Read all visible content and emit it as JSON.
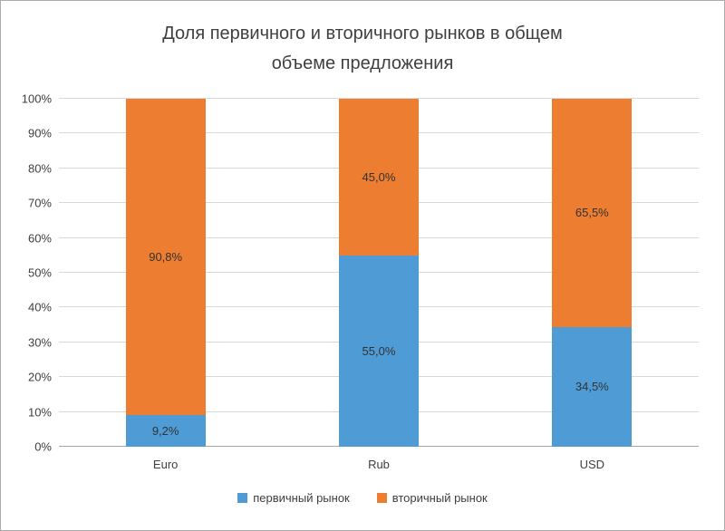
{
  "chart_data": {
    "type": "bar",
    "stacked": true,
    "percent_stacked": true,
    "title": "Доля первичного и вторичного рынков в общем объеме предложения",
    "title_lines": [
      "Доля первичного и вторичного рынков в общем",
      "объеме предложения"
    ],
    "categories": [
      "Euro",
      "Rub",
      "USD"
    ],
    "series": [
      {
        "name": "первичный рынок",
        "color": "#4F9BD5",
        "values": [
          9.2,
          55.0,
          34.5
        ],
        "labels": [
          "9,2%",
          "55,0%",
          "34,5%"
        ]
      },
      {
        "name": "вторичный рынок",
        "color": "#EC7D31",
        "values": [
          90.8,
          45.0,
          65.5
        ],
        "labels": [
          "90,8%",
          "45,0%",
          "65,5%"
        ]
      }
    ],
    "xlabel": "",
    "ylabel": "",
    "ylim": [
      0,
      100
    ],
    "ytick_step": 10,
    "ytick_labels": [
      "0%",
      "10%",
      "20%",
      "30%",
      "40%",
      "50%",
      "60%",
      "70%",
      "80%",
      "90%",
      "100%"
    ],
    "grid": true,
    "legend_position": "bottom"
  },
  "colors": {
    "title_text": "#404040",
    "gridline": "#D9D9D9",
    "axis_line": "#A6A6A6",
    "primary_series": "#4F9BD5",
    "secondary_series": "#EC7D31"
  }
}
